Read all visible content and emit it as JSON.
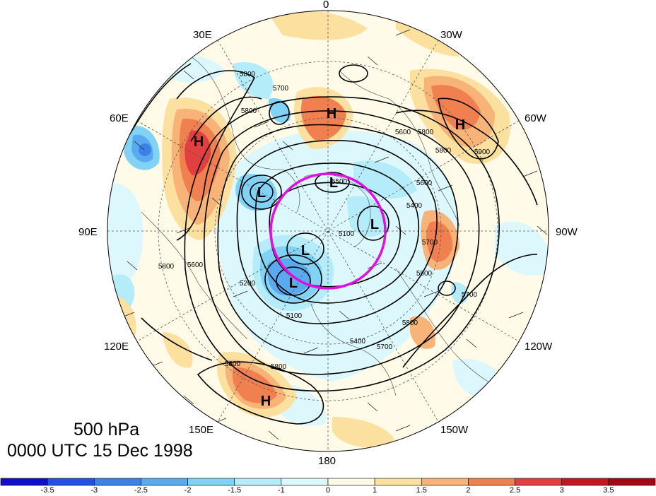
{
  "map": {
    "title_level": "500 hPa",
    "title_time": "0000 UTC 15 Dec 1998",
    "projection": "north-polar-stereographic",
    "longitude_labels": [
      "0",
      "30W",
      "60W",
      "90W",
      "120W",
      "150W",
      "180",
      "150E",
      "120E",
      "90E",
      "60E",
      "30E"
    ],
    "pressure_centers": [
      "H",
      "H",
      "H",
      "H",
      "L",
      "L",
      "L",
      "L",
      "L"
    ],
    "contour_labels": [
      "5800",
      "5700",
      "5800",
      "5600",
      "5800",
      "5800",
      "5600",
      "5900",
      "5400",
      "5700",
      "5100",
      "5800",
      "5700",
      "5200",
      "5100",
      "5400",
      "5700",
      "5800",
      "5800",
      "5600",
      "5800",
      "5800",
      "5500"
    ],
    "highlight_circle_color": "#e010e0"
  },
  "colorbar": {
    "ticks": [
      "-3.5",
      "-3",
      "-2.5",
      "-2",
      "-1.5",
      "-1",
      "0",
      "1",
      "1.5",
      "2",
      "2.5",
      "3",
      "3.5"
    ],
    "colors": [
      "#1010c8",
      "#2650e0",
      "#3c82e6",
      "#5aaaf0",
      "#82d2f6",
      "#b4ecfa",
      "#dcf8fc",
      "#fffae6",
      "#fce0a0",
      "#f8b478",
      "#f08050",
      "#e04040",
      "#c01820",
      "#a00a14"
    ]
  }
}
